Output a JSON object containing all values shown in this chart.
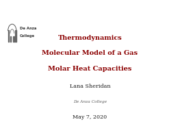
{
  "title_line1": "Thermodynamics",
  "title_line2": "Molecular Model of a Gas",
  "title_line3": "Molar Heat Capacities",
  "title_color": "#8b0000",
  "author": "Lana Sheridan",
  "institution": "De Anza College",
  "date": "May 7, 2020",
  "bg_color": "#ffffff",
  "text_color": "#1a1a1a",
  "institution_color": "#555555",
  "title_fontsize": 7.0,
  "author_fontsize": 5.8,
  "institution_fontsize": 4.2,
  "date_fontsize": 5.8,
  "logo_text1": "De Anza",
  "logo_text2": "College"
}
